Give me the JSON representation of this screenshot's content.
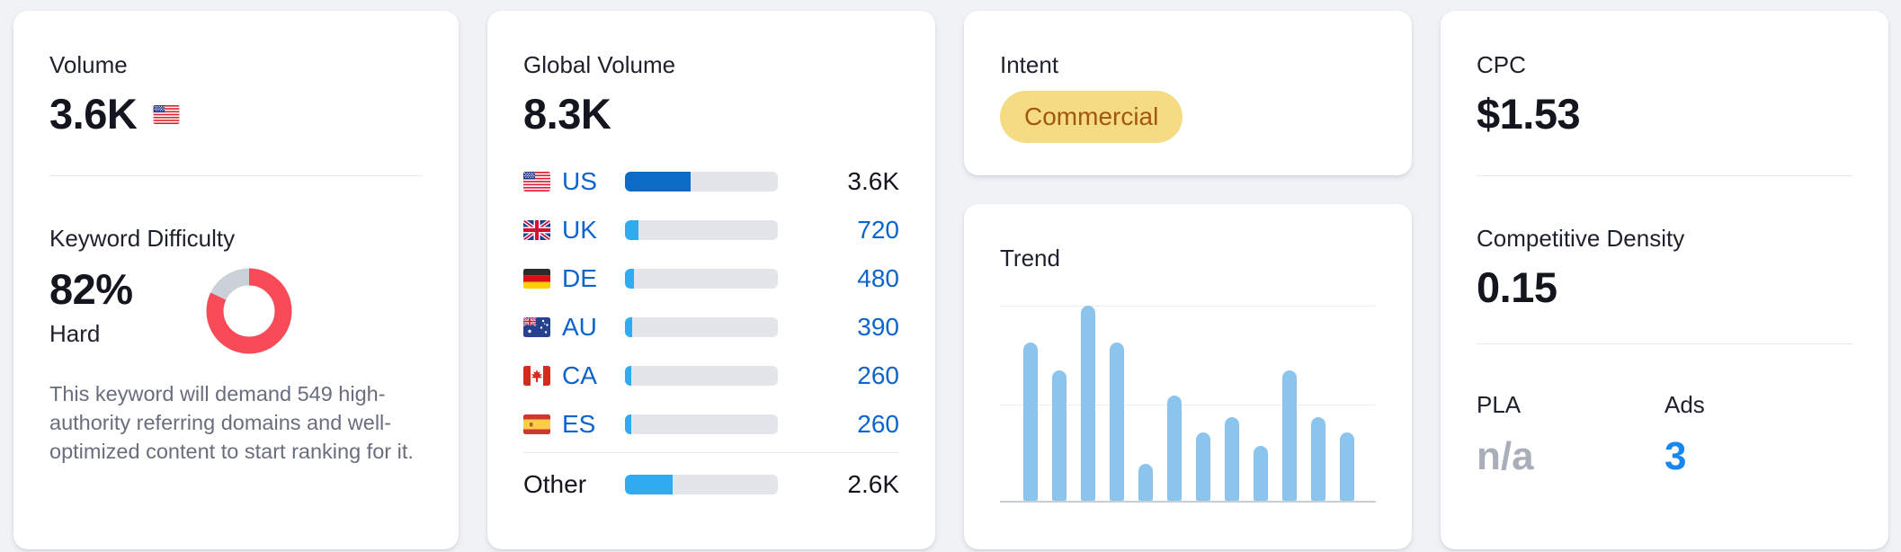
{
  "colors": {
    "page_background": "#f0f2f6",
    "card_background": "#ffffff",
    "link_blue": "#0d64cc",
    "bar_primary_blue": "#0a6cc4",
    "bar_secondary_blue": "#2fabf2",
    "bar_track_gray": "#e3e5eb",
    "trend_bar_blue": "#8bc5ee",
    "difficulty_red": "#f94a58",
    "difficulty_track_gray": "#cbd0d9",
    "intent_badge_background": "#f6db85",
    "intent_badge_text": "#a2570f",
    "ads_value_blue": "#1787f2",
    "na_gray": "#a9aeb9"
  },
  "volume_card": {
    "label": "Volume",
    "value": "3.6K",
    "flag_icon": "flag-us",
    "kd": {
      "label": "Keyword Difficulty",
      "percent": "82%",
      "percent_value": 82,
      "level": "Hard",
      "description": "This keyword will demand 549 high-authority referring domains and well-optimized content to start ranking for it."
    }
  },
  "global_volume_card": {
    "label": "Global Volume",
    "value": "8.3K",
    "rows": [
      {
        "code": "US",
        "flag_icon": "flag-us",
        "value": "3.6K",
        "share_percent": 43,
        "emphasis": true,
        "value_style": "dark"
      },
      {
        "code": "UK",
        "flag_icon": "flag-uk",
        "value": "720",
        "share_percent": 8.7,
        "emphasis": false,
        "value_style": "link"
      },
      {
        "code": "DE",
        "flag_icon": "flag-de",
        "value": "480",
        "share_percent": 5.8,
        "emphasis": false,
        "value_style": "link"
      },
      {
        "code": "AU",
        "flag_icon": "flag-au",
        "value": "390",
        "share_percent": 4.7,
        "emphasis": false,
        "value_style": "link"
      },
      {
        "code": "CA",
        "flag_icon": "flag-ca",
        "value": "260",
        "share_percent": 3.1,
        "emphasis": false,
        "value_style": "link"
      },
      {
        "code": "ES",
        "flag_icon": "flag-es",
        "value": "260",
        "share_percent": 3.1,
        "emphasis": false,
        "value_style": "link"
      }
    ],
    "other_row": {
      "label": "Other",
      "value": "2.6K",
      "share_percent": 31
    }
  },
  "intent_card": {
    "label": "Intent",
    "badge": "Commercial"
  },
  "trend_card": {
    "label": "Trend"
  },
  "chart_data": {
    "type": "bar",
    "title": "Trend",
    "xlabel": "",
    "ylabel": "",
    "categories": [
      "",
      "",
      "",
      "",
      "",
      "",
      "",
      "",
      "",
      "",
      "",
      ""
    ],
    "values": [
      0.81,
      0.67,
      1.0,
      0.81,
      0.19,
      0.54,
      0.35,
      0.43,
      0.28,
      0.67,
      0.43,
      0.35
    ],
    "ylim": [
      0,
      1
    ],
    "gridlines": [
      0,
      0.5,
      1
    ],
    "legend": false
  },
  "cpc_card": {
    "label": "CPC",
    "value": "$1.53",
    "competitive_density": {
      "label": "Competitive Density",
      "value": "0.15"
    },
    "pla": {
      "label": "PLA",
      "value": "n/a"
    },
    "ads": {
      "label": "Ads",
      "value": "3"
    }
  }
}
